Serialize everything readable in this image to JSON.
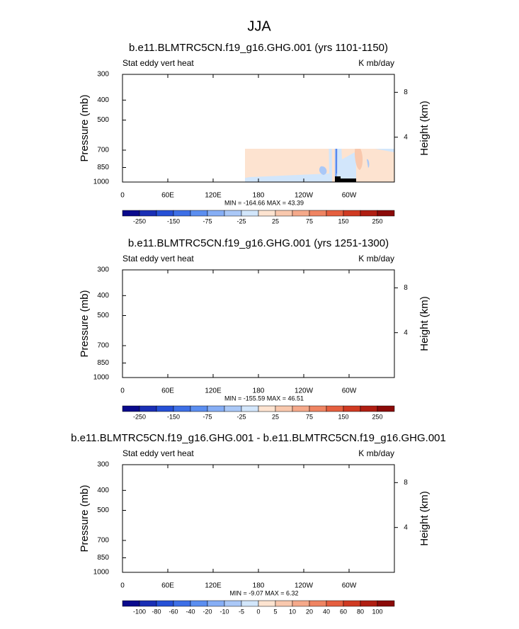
{
  "title": "JJA",
  "chart_data": [
    {
      "type": "contour",
      "title": "b.e11.BLMTRC5CN.f19_g16.GHG.001 (yrs 1101-1150)",
      "left_label": "Stat eddy vert heat",
      "right_label": "K mb/day",
      "ylabel": "Pressure (mb)",
      "y2label": "Height (km)",
      "stats_label": "MIN = -164.66  MAX =  43.39",
      "xlim": [
        0,
        360
      ],
      "xticks": [
        0,
        {
          "value": 60,
          "label": "60E"
        },
        {
          "value": 120,
          "label": "120E"
        },
        180,
        {
          "value": 240,
          "label": "120W"
        },
        {
          "value": 300,
          "label": "60W"
        }
      ],
      "ylim": [
        1000,
        300
      ],
      "ylog": true,
      "yticks": [
        300,
        400,
        500,
        700,
        850,
        1000
      ],
      "y2lim": [
        0,
        9.6
      ],
      "y2ticks": [
        4,
        8
      ],
      "colorbar": {
        "levels": [
          -250,
          null,
          -150,
          null,
          -75,
          null,
          -25,
          null,
          25,
          null,
          75,
          null,
          150,
          null,
          250
        ],
        "colors": [
          "#0a0a8c",
          "#1a2fb5",
          "#2650d6",
          "#3d6fe6",
          "#5b8ef0",
          "#86aef5",
          "#aac8f7",
          "#d2e6fb",
          "#fde3d0",
          "#f9c8ad",
          "#f5a98a",
          "#ef8462",
          "#e55f3f",
          "#d03a22",
          "#b01e12",
          "#8b0a08"
        ]
      }
    },
    {
      "type": "contour",
      "title": "b.e11.BLMTRC5CN.f19_g16.GHG.001 (yrs 1251-1300)",
      "left_label": "Stat eddy vert heat",
      "right_label": "K mb/day",
      "ylabel": "Pressure (mb)",
      "y2label": "Height (km)",
      "stats_label": "MIN = -155.59  MAX =  46.51",
      "xlim": [
        0,
        360
      ],
      "xticks": [
        0,
        {
          "value": 60,
          "label": "60E"
        },
        {
          "value": 120,
          "label": "120E"
        },
        180,
        {
          "value": 240,
          "label": "120W"
        },
        {
          "value": 300,
          "label": "60W"
        }
      ],
      "ylim": [
        1000,
        300
      ],
      "ylog": true,
      "yticks": [
        300,
        400,
        500,
        700,
        850,
        1000
      ],
      "y2lim": [
        0,
        9.6
      ],
      "y2ticks": [
        4,
        8
      ],
      "colorbar": {
        "levels": [
          -250,
          null,
          -150,
          null,
          -75,
          null,
          -25,
          null,
          25,
          null,
          75,
          null,
          150,
          null,
          250
        ],
        "colors": [
          "#0a0a8c",
          "#1a2fb5",
          "#2650d6",
          "#3d6fe6",
          "#5b8ef0",
          "#86aef5",
          "#aac8f7",
          "#d2e6fb",
          "#fde3d0",
          "#f9c8ad",
          "#f5a98a",
          "#ef8462",
          "#e55f3f",
          "#d03a22",
          "#b01e12",
          "#8b0a08"
        ]
      }
    },
    {
      "type": "contour",
      "title": "b.e11.BLMTRC5CN.f19_g16.GHG.001 - b.e11.BLMTRC5CN.f19_g16.GHG.001",
      "left_label": "Stat eddy vert heat",
      "right_label": "K mb/day",
      "ylabel": "Pressure (mb)",
      "y2label": "Height (km)",
      "stats_label": "MIN = -9.07  MAX =  6.32",
      "xlim": [
        0,
        360
      ],
      "xticks": [
        0,
        {
          "value": 60,
          "label": "60E"
        },
        {
          "value": 120,
          "label": "120E"
        },
        180,
        {
          "value": 240,
          "label": "120W"
        },
        {
          "value": 300,
          "label": "60W"
        }
      ],
      "ylim": [
        1000,
        300
      ],
      "ylog": true,
      "yticks": [
        300,
        400,
        500,
        700,
        850,
        1000
      ],
      "y2lim": [
        0,
        9.6
      ],
      "y2ticks": [
        4,
        8
      ],
      "colorbar": {
        "levels": [
          -100,
          -80,
          -60,
          -40,
          -20,
          -10,
          -5,
          0,
          5,
          10,
          20,
          40,
          60,
          80,
          100
        ],
        "colors": [
          "#0a0a8c",
          "#1a2fb5",
          "#2650d6",
          "#3d6fe6",
          "#5b8ef0",
          "#86aef5",
          "#aac8f7",
          "#d2e6fb",
          "#fde3d0",
          "#f9c8ad",
          "#f5a98a",
          "#ef8462",
          "#e55f3f",
          "#d03a22",
          "#b01e12",
          "#8b0a08"
        ]
      }
    }
  ]
}
